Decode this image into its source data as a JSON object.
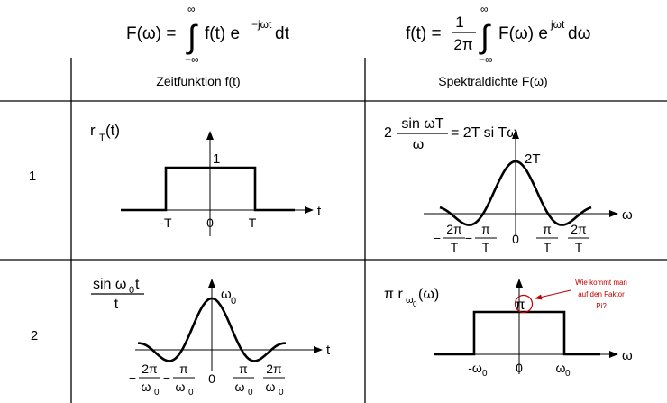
{
  "header": {
    "forward": {
      "lhs": "F(ω) =",
      "upper": "∞",
      "lower": "−∞",
      "integrand_pre": "f(t) e",
      "exp": "−jωt",
      "integrand_post": "dt"
    },
    "inverse": {
      "lhs": "f(t) =",
      "frac_num": "1",
      "frac_den": "2π",
      "upper": "∞",
      "lower": "−∞",
      "integrand_pre": "F(ω) e",
      "exp": "jωt",
      "integrand_post": "dω"
    }
  },
  "columns": {
    "time": "Zeitfunktion f(t)",
    "spectral": "Spektraldichte F(ω)"
  },
  "rows": [
    {
      "number": "1",
      "time_label": {
        "base": "r",
        "sub": "T",
        "rest": "(t)"
      },
      "time_plot": {
        "amplitude_label": "1",
        "axis_label": "t",
        "ticks": [
          "-T",
          "0",
          "T"
        ]
      },
      "spec_label": {
        "prefix": "2",
        "frac_num": "sin ωT",
        "frac_den": "ω",
        "rest": "= 2T si Tω"
      },
      "spec_plot": {
        "peak_label": "2T",
        "axis_label": "ω",
        "ticks": [
          {
            "sign": "−",
            "num": "2π",
            "den": "T"
          },
          {
            "sign": "−",
            "num": "π",
            "den": "T"
          },
          {
            "plain": "0"
          },
          {
            "sign": "",
            "num": "π",
            "den": "T"
          },
          {
            "sign": "",
            "num": "2π",
            "den": "T"
          }
        ]
      }
    },
    {
      "number": "2",
      "time_label": {
        "frac_num": "sin ω",
        "frac_num_sub": "0",
        "frac_num_rest": "t",
        "frac_den": "t"
      },
      "time_plot": {
        "peak_label": "ω",
        "peak_sub": "0",
        "axis_label": "t",
        "ticks": [
          {
            "sign": "−",
            "num": "2π",
            "den": "ω",
            "den_sub": "0"
          },
          {
            "sign": "−",
            "num": "π",
            "den": "ω",
            "den_sub": "0"
          },
          {
            "plain": "0"
          },
          {
            "sign": "",
            "num": "π",
            "den": "ω",
            "den_sub": "0"
          },
          {
            "sign": "",
            "num": "2π",
            "den": "ω",
            "den_sub": "0"
          }
        ]
      },
      "spec_label": {
        "prefix": "π r",
        "sub": "ω",
        "subsub": "0",
        "rest": "(ω)"
      },
      "spec_plot": {
        "amplitude_label": "π",
        "axis_label": "ω",
        "ticks": [
          {
            "base": "-ω",
            "sub": "0"
          },
          {
            "base": "0",
            "sub": ""
          },
          {
            "base": "ω",
            "sub": "0"
          }
        ]
      },
      "annotation": [
        "Wie kommt man",
        "auf den Faktor",
        "Pi?"
      ],
      "annotation_color": "#c00000"
    }
  ],
  "colors": {
    "ink": "#000000",
    "grid": "#000000",
    "annotation": "#c00000"
  }
}
